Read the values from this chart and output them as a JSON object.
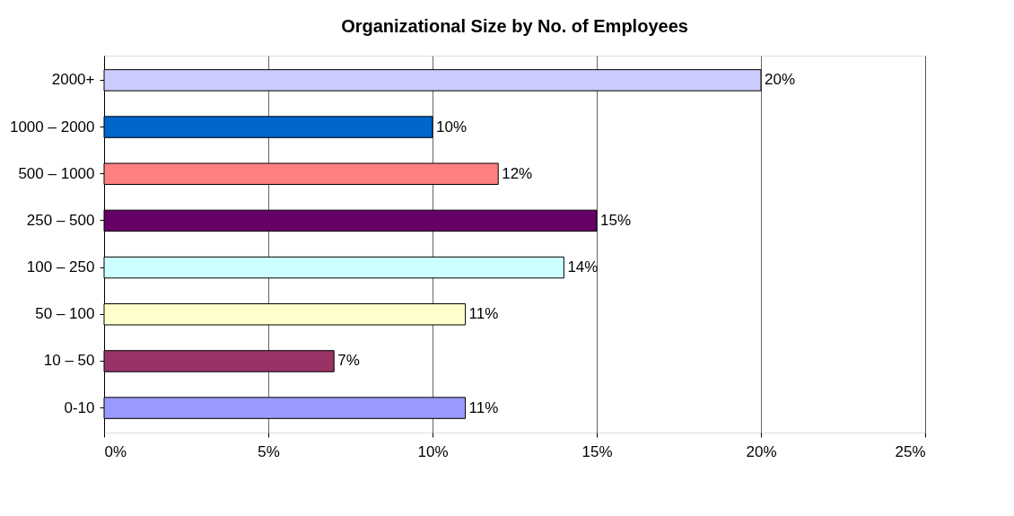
{
  "chart_data": {
    "type": "bar",
    "orientation": "horizontal",
    "title": "Organizational Size by No. of Employees",
    "categories": [
      "2000+",
      "1000 – 2000",
      "500 – 1000",
      "250 – 500",
      "100 – 250",
      "50 – 100",
      "10 – 50",
      "0-10"
    ],
    "values": [
      20,
      10,
      12,
      15,
      14,
      11,
      7,
      11
    ],
    "value_labels": [
      "20%",
      "10%",
      "12%",
      "15%",
      "14%",
      "11%",
      "7%",
      "11%"
    ],
    "colors": [
      "#ccccff",
      "#0066cc",
      "#ff8080",
      "#660066",
      "#ccffff",
      "#ffffcc",
      "#993366",
      "#9999ff"
    ],
    "xlim": [
      0,
      25
    ],
    "xticks": [
      {
        "value": 0,
        "label": "0%"
      },
      {
        "value": 5,
        "label": "5%"
      },
      {
        "value": 10,
        "label": "10%"
      },
      {
        "value": 15,
        "label": "15%"
      },
      {
        "value": 20,
        "label": "20%"
      },
      {
        "value": 25,
        "label": "25%"
      }
    ],
    "grid": "x"
  }
}
